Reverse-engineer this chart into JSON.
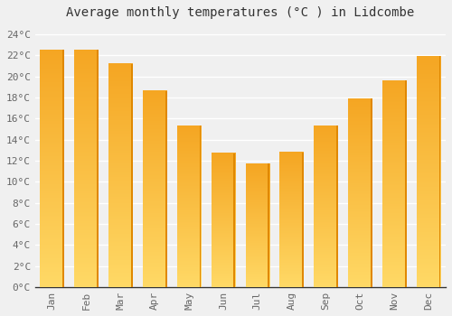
{
  "title": "Average monthly temperatures (°C ) in Lidcombe",
  "months": [
    "Jan",
    "Feb",
    "Mar",
    "Apr",
    "May",
    "Jun",
    "Jul",
    "Aug",
    "Sep",
    "Oct",
    "Nov",
    "Dec"
  ],
  "values": [
    22.5,
    22.5,
    21.2,
    18.6,
    15.3,
    12.7,
    11.7,
    12.8,
    15.3,
    17.9,
    19.6,
    21.9
  ],
  "bar_color_top": "#F5A623",
  "bar_color_bottom": "#FFD966",
  "bar_color_right": "#E08800",
  "ylim": [
    0,
    25
  ],
  "ytick_step": 2,
  "background_color": "#f0f0f0",
  "plot_bg_color": "#f0f0f0",
  "grid_color": "#ffffff",
  "title_fontsize": 10,
  "tick_fontsize": 8,
  "bar_width": 0.7
}
